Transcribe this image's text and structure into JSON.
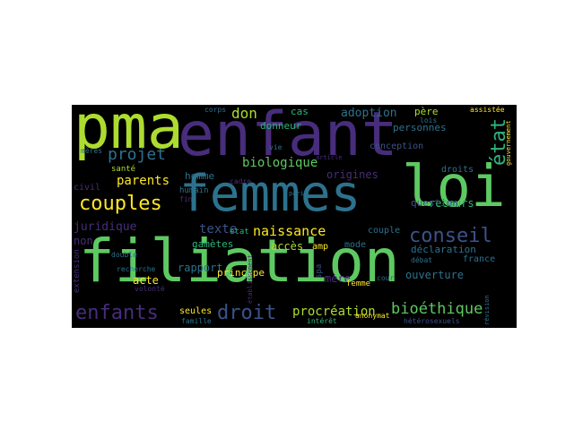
{
  "words": [
    {
      "text": "filiation",
      "color": "#5ec962"
    },
    {
      "text": "enfant",
      "color": "#472d7b"
    },
    {
      "text": "femmes",
      "color": "#2c728e"
    },
    {
      "text": "pma",
      "color": "#addc30"
    },
    {
      "text": "loi",
      "color": "#5ec962"
    },
    {
      "text": "état",
      "color": "#2fb47c"
    },
    {
      "text": "couples",
      "color": "#fde725"
    },
    {
      "text": "conseil",
      "color": "#3b528b"
    },
    {
      "text": "enfants",
      "color": "#472d7b"
    },
    {
      "text": "droit",
      "color": "#3b528b"
    },
    {
      "text": "bioéthique",
      "color": "#5ec962"
    },
    {
      "text": "naissance",
      "color": "#fde725"
    },
    {
      "text": "projet",
      "color": "#2c728e"
    },
    {
      "text": "don",
      "color": "#addc30"
    },
    {
      "text": "adoption",
      "color": "#2c728e"
    },
    {
      "text": "procréation",
      "color": "#addc30"
    },
    {
      "text": "parents",
      "color": "#fde725"
    },
    {
      "text": "biologique",
      "color": "#5ec962"
    },
    {
      "text": "origines",
      "color": "#472d7b"
    },
    {
      "text": "texte",
      "color": "#3b528b"
    },
    {
      "text": "juridique",
      "color": "#472d7b"
    },
    {
      "text": "recours",
      "color": "#2fb47c"
    },
    {
      "text": "ouverture",
      "color": "#2c728e"
    },
    {
      "text": "déclaration",
      "color": "#2c728e"
    },
    {
      "text": "couple",
      "color": "#2c728e"
    },
    {
      "text": "accès",
      "color": "#addc30"
    },
    {
      "text": "mère",
      "color": "#472d7b"
    },
    {
      "text": "acte",
      "color": "#fde725"
    },
    {
      "text": "rapport",
      "color": "#2c728e"
    },
    {
      "text": "principe",
      "color": "#fde725"
    },
    {
      "text": "gamètes",
      "color": "#2fb47c"
    },
    {
      "text": "personnes",
      "color": "#2c728e"
    },
    {
      "text": "conception",
      "color": "#3b528b"
    },
    {
      "text": "question",
      "color": "#3b528b"
    },
    {
      "text": "homme",
      "color": "#2c728e"
    },
    {
      "text": "droits",
      "color": "#2c728e"
    },
    {
      "text": "père",
      "color": "#addc30"
    },
    {
      "text": "seules",
      "color": "#fde725"
    },
    {
      "text": "cas",
      "color": "#2fb47c"
    },
    {
      "text": "donneur",
      "color": "#2fb47c"
    },
    {
      "text": "humain",
      "color": "#2c728e"
    },
    {
      "text": "santé",
      "color": "#addc30"
    },
    {
      "text": "femme",
      "color": "#fde725"
    },
    {
      "text": "mode",
      "color": "#2c728e"
    },
    {
      "text": "france",
      "color": "#2c728e"
    },
    {
      "text": "amp",
      "color": "#fde725"
    },
    {
      "text": "etat",
      "color": "#2fb47c"
    },
    {
      "text": "non",
      "color": "#472d7b"
    },
    {
      "text": "extension",
      "color": "#472d7b"
    },
    {
      "text": "corps",
      "color": "#2c728e"
    },
    {
      "text": "anonymat",
      "color": "#fde725"
    },
    {
      "text": "assistée",
      "color": "#fde725"
    },
    {
      "text": "intérêt",
      "color": "#2fb47c"
    },
    {
      "text": "vie",
      "color": "#2c728e"
    },
    {
      "text": "hétérosexuels",
      "color": "#3b528b"
    },
    {
      "text": "cadre",
      "color": "#472d7b"
    },
    {
      "text": "fin",
      "color": "#472d7b"
    },
    {
      "text": "recherche",
      "color": "#2c728e"
    },
    {
      "text": "mères",
      "color": "#2c728e"
    },
    {
      "text": "civil",
      "color": "#472d7b"
    },
    {
      "text": "lois",
      "color": "#2c728e"
    },
    {
      "text": "famille",
      "color": "#2c728e"
    },
    {
      "text": "double",
      "color": "#2c728e"
    },
    {
      "text": "volonté",
      "color": "#472d7b"
    },
    {
      "text": "débat",
      "color": "#2c728e"
    },
    {
      "text": "cour",
      "color": "#2c728e"
    },
    {
      "text": "révision",
      "color": "#2c728e"
    },
    {
      "text": "gouvernement",
      "color": "#fde725"
    },
    {
      "text": "paris",
      "color": "#2c728e"
    },
    {
      "text": "spa",
      "color": "#3b528b"
    },
    {
      "text": "article",
      "color": "#472d7b"
    },
    {
      "text": "établissement",
      "color": "#472d7b"
    }
  ]
}
